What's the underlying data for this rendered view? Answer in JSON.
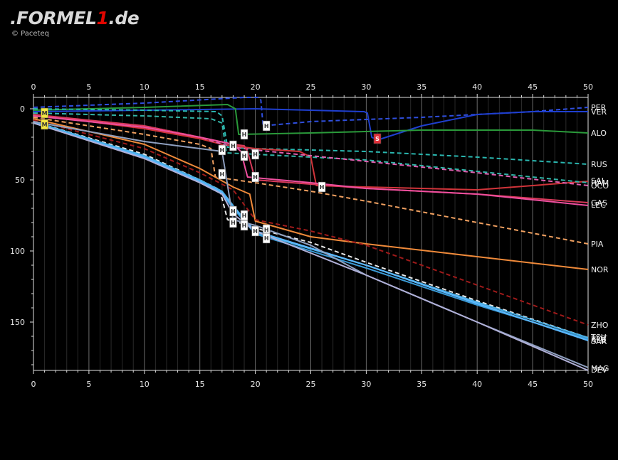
{
  "brand": {
    "logo_prefix": ".FORMEL",
    "logo_one": "1",
    "logo_suffix": ".de",
    "credit": "© Paceteq"
  },
  "chart_data": {
    "type": "line",
    "title": "",
    "xlabel": "",
    "ylabel": "",
    "x_ticks": [
      0,
      5,
      10,
      15,
      20,
      25,
      30,
      35,
      40,
      45,
      50
    ],
    "y_ticks": [
      0,
      50,
      100,
      150
    ],
    "xlim": [
      0,
      50
    ],
    "ylim": [
      184,
      -8
    ],
    "y_inverted": true,
    "grid": "vertical",
    "series": [
      {
        "name": "PER",
        "color": "#2f4fe0",
        "dash": true,
        "points": [
          [
            0,
            -1
          ],
          [
            10,
            -4
          ],
          [
            19,
            -8
          ],
          [
            20.3,
            -8
          ],
          [
            20.5,
            -6
          ],
          [
            20.7,
            12
          ],
          [
            25,
            9
          ],
          [
            35,
            6
          ],
          [
            45,
            2
          ],
          [
            50,
            -1
          ]
        ]
      },
      {
        "name": "VER",
        "color": "#1f3fd0",
        "dash": false,
        "points": [
          [
            0,
            2
          ],
          [
            10,
            1
          ],
          [
            20,
            0
          ],
          [
            25,
            1
          ],
          [
            29.8,
            2
          ],
          [
            30.1,
            3
          ],
          [
            30.5,
            20
          ],
          [
            31,
            22
          ],
          [
            35,
            12
          ],
          [
            40,
            4
          ],
          [
            45,
            2
          ],
          [
            50,
            2
          ]
        ]
      },
      {
        "name": "ALO",
        "color": "#2a9a3a",
        "dash": false,
        "points": [
          [
            0,
            1
          ],
          [
            10,
            -1
          ],
          [
            17.5,
            -3
          ],
          [
            18.2,
            0
          ],
          [
            18.5,
            18
          ],
          [
            25,
            17
          ],
          [
            35,
            15
          ],
          [
            45,
            15
          ],
          [
            50,
            17
          ]
        ]
      },
      {
        "name": "RUS",
        "color": "#2ab7b0",
        "dash": true,
        "points": [
          [
            0,
            0
          ],
          [
            10,
            1
          ],
          [
            16.5,
            2
          ],
          [
            17,
            5
          ],
          [
            17.5,
            27
          ],
          [
            20,
            28
          ],
          [
            25,
            29
          ],
          [
            30,
            30
          ],
          [
            40,
            34
          ],
          [
            50,
            39
          ]
        ]
      },
      {
        "name": "SAI",
        "color": "#d1343a",
        "dash": false,
        "points": [
          [
            0,
            4
          ],
          [
            10,
            14
          ],
          [
            15,
            21
          ],
          [
            17,
            25
          ],
          [
            20,
            28
          ],
          [
            24,
            30
          ],
          [
            25,
            34
          ],
          [
            25.5,
            54
          ],
          [
            30,
            55
          ],
          [
            40,
            57
          ],
          [
            50,
            51
          ]
        ]
      },
      {
        "name": "HAM",
        "color": "#32b4a8",
        "dash": true,
        "points": [
          [
            0,
            3
          ],
          [
            10,
            5
          ],
          [
            16,
            7
          ],
          [
            17,
            10
          ],
          [
            17.4,
            31
          ],
          [
            20,
            32
          ],
          [
            30,
            36
          ],
          [
            40,
            44
          ],
          [
            50,
            52
          ]
        ]
      },
      {
        "name": "OCO",
        "color": "#e060b0",
        "dash": true,
        "points": [
          [
            0,
            5
          ],
          [
            10,
            12
          ],
          [
            15,
            20
          ],
          [
            18,
            27
          ],
          [
            20,
            29
          ],
          [
            25,
            33
          ],
          [
            30,
            37
          ],
          [
            40,
            45
          ],
          [
            50,
            54
          ]
        ]
      },
      {
        "name": "LEC",
        "color": "#d83a5a",
        "dash": false,
        "points": [
          [
            0,
            4
          ],
          [
            10,
            12
          ],
          [
            15,
            20
          ],
          [
            18,
            25
          ],
          [
            19,
            26
          ],
          [
            19.3,
            30
          ],
          [
            20,
            50
          ],
          [
            30,
            56
          ],
          [
            40,
            60
          ],
          [
            50,
            66
          ]
        ]
      },
      {
        "name": "GAS",
        "color": "#ef4f9f",
        "dash": false,
        "points": [
          [
            0,
            5
          ],
          [
            10,
            13
          ],
          [
            15,
            20
          ],
          [
            18,
            25
          ],
          [
            18.7,
            30
          ],
          [
            19.3,
            48
          ],
          [
            25,
            52
          ],
          [
            30,
            56
          ],
          [
            40,
            60
          ],
          [
            50,
            68
          ]
        ]
      },
      {
        "name": "PIA",
        "color": "#f0a060",
        "dash": true,
        "points": [
          [
            0,
            6
          ],
          [
            10,
            18
          ],
          [
            15,
            25
          ],
          [
            16,
            28
          ],
          [
            16.4,
            48
          ],
          [
            20,
            52
          ],
          [
            25,
            58
          ],
          [
            30,
            65
          ],
          [
            40,
            80
          ],
          [
            50,
            95
          ]
        ]
      },
      {
        "name": "NOR",
        "color": "#f08a3a",
        "dash": false,
        "points": [
          [
            0,
            7
          ],
          [
            10,
            25
          ],
          [
            15,
            42
          ],
          [
            18,
            55
          ],
          [
            19.5,
            60
          ],
          [
            20,
            79
          ],
          [
            25,
            90
          ],
          [
            30,
            95
          ],
          [
            40,
            104
          ],
          [
            50,
            113
          ]
        ]
      },
      {
        "name": "ZHO",
        "color": "#a01a1a",
        "dash": true,
        "points": [
          [
            0,
            8
          ],
          [
            10,
            28
          ],
          [
            15,
            45
          ],
          [
            18,
            57
          ],
          [
            20,
            78
          ],
          [
            25,
            86
          ],
          [
            30,
            96
          ],
          [
            40,
            124
          ],
          [
            50,
            152
          ]
        ]
      },
      {
        "name": "SAR",
        "color": "#e8e8e8",
        "dash": true,
        "points": [
          [
            0,
            9
          ],
          [
            10,
            32
          ],
          [
            15,
            50
          ],
          [
            16.8,
            57
          ],
          [
            17.5,
            78
          ],
          [
            19.5,
            82
          ],
          [
            20,
            84
          ],
          [
            25,
            94
          ],
          [
            30,
            108
          ],
          [
            40,
            135
          ],
          [
            50,
            161
          ]
        ]
      },
      {
        "name": "BOT",
        "color": "#4ab0e6",
        "dash": false,
        "points": [
          [
            0,
            9
          ],
          [
            10,
            33
          ],
          [
            15,
            50
          ],
          [
            17,
            58
          ],
          [
            18,
            68
          ],
          [
            20,
            87
          ],
          [
            30,
            110
          ],
          [
            40,
            136
          ],
          [
            50,
            161
          ]
        ]
      },
      {
        "name": "ALB",
        "color": "#3a9ad6",
        "dash": false,
        "points": [
          [
            0,
            10
          ],
          [
            10,
            34
          ],
          [
            15,
            52
          ],
          [
            17,
            60
          ],
          [
            18,
            70
          ],
          [
            20,
            88
          ],
          [
            30,
            112
          ],
          [
            40,
            138
          ],
          [
            50,
            162
          ]
        ]
      },
      {
        "name": "TSU",
        "color": "#5cb8ff",
        "dash": false,
        "points": [
          [
            0,
            10
          ],
          [
            10,
            34
          ],
          [
            15,
            51
          ],
          [
            17,
            59
          ],
          [
            18,
            69
          ],
          [
            20,
            86
          ],
          [
            30,
            110
          ],
          [
            40,
            137
          ],
          [
            50,
            163
          ]
        ]
      },
      {
        "name": "DEV",
        "color": "#8fa0c0",
        "dash": false,
        "points": [
          [
            0,
            9
          ],
          [
            10,
            23
          ],
          [
            15,
            28
          ],
          [
            17,
            30
          ],
          [
            18,
            78
          ],
          [
            20,
            82
          ],
          [
            25,
            96
          ],
          [
            30,
            117
          ],
          [
            40,
            150
          ],
          [
            50,
            182
          ]
        ]
      },
      {
        "name": "MAG",
        "color": "#b0b0d8",
        "dash": false,
        "points": [
          [
            0,
            10
          ],
          [
            10,
            35
          ],
          [
            15,
            52
          ],
          [
            17,
            60
          ],
          [
            18,
            74
          ],
          [
            20,
            86
          ],
          [
            30,
            117
          ],
          [
            40,
            150
          ],
          [
            50,
            184
          ]
        ]
      }
    ],
    "end_labels": [
      {
        "text": "PER",
        "y": -1
      },
      {
        "text": "VER",
        "y": 2
      },
      {
        "text": "ALO",
        "y": 17
      },
      {
        "text": "RUS",
        "y": 39
      },
      {
        "text": "SAI",
        "y": 50.5
      },
      {
        "text": "HAM",
        "y": 52
      },
      {
        "text": "OCO",
        "y": 54
      },
      {
        "text": "GAS",
        "y": 66
      },
      {
        "text": "LEC",
        "y": 67.5
      },
      {
        "text": "PIA",
        "y": 95
      },
      {
        "text": "NOR",
        "y": 113
      },
      {
        "text": "ZHO",
        "y": 152
      },
      {
        "text": "TSU",
        "y": 160.5
      },
      {
        "text": "BOT",
        "y": 161.5
      },
      {
        "text": "ALB",
        "y": 162.5
      },
      {
        "text": "SAR",
        "y": 163.5
      },
      {
        "text": "MAG",
        "y": 182.5
      },
      {
        "text": "DEV",
        "y": 183.5
      }
    ],
    "annotations": [
      {
        "text": "M",
        "x": 1,
        "y": 3,
        "fill": "#f3e641",
        "text_color": "#333333"
      },
      {
        "text": "M",
        "x": 1,
        "y": 11,
        "fill": "#f3e641",
        "text_color": "#333333"
      },
      {
        "text": "H",
        "x": 21,
        "y": 12,
        "fill": "#ffffff",
        "text_color": "#333333"
      },
      {
        "text": "H",
        "x": 19,
        "y": 18,
        "fill": "#ffffff",
        "text_color": "#333333"
      },
      {
        "text": "S",
        "x": 31,
        "y": 21,
        "fill": "#e0303a",
        "text_color": "#ffffff"
      },
      {
        "text": "H",
        "x": 18,
        "y": 26,
        "fill": "#ffffff",
        "text_color": "#333333"
      },
      {
        "text": "H",
        "x": 17,
        "y": 29,
        "fill": "#ffffff",
        "text_color": "#333333"
      },
      {
        "text": "H",
        "x": 20,
        "y": 32,
        "fill": "#ffffff",
        "text_color": "#333333"
      },
      {
        "text": "H",
        "x": 19,
        "y": 33,
        "fill": "#ffffff",
        "text_color": "#333333"
      },
      {
        "text": "H",
        "x": 17,
        "y": 46,
        "fill": "#ffffff",
        "text_color": "#333333"
      },
      {
        "text": "H",
        "x": 20,
        "y": 48,
        "fill": "#ffffff",
        "text_color": "#333333"
      },
      {
        "text": "H",
        "x": 26,
        "y": 55,
        "fill": "#ffffff",
        "text_color": "#333333"
      },
      {
        "text": "H",
        "x": 18,
        "y": 72,
        "fill": "#ffffff",
        "text_color": "#333333"
      },
      {
        "text": "H",
        "x": 19,
        "y": 75,
        "fill": "#ffffff",
        "text_color": "#333333"
      },
      {
        "text": "H",
        "x": 18,
        "y": 80,
        "fill": "#ffffff",
        "text_color": "#333333"
      },
      {
        "text": "H",
        "x": 19,
        "y": 82,
        "fill": "#ffffff",
        "text_color": "#333333"
      },
      {
        "text": "H",
        "x": 20,
        "y": 86,
        "fill": "#ffffff",
        "text_color": "#333333"
      },
      {
        "text": "H",
        "x": 21,
        "y": 85,
        "fill": "#ffffff",
        "text_color": "#333333"
      },
      {
        "text": "H",
        "x": 21,
        "y": 91,
        "fill": "#ffffff",
        "text_color": "#333333"
      }
    ]
  }
}
